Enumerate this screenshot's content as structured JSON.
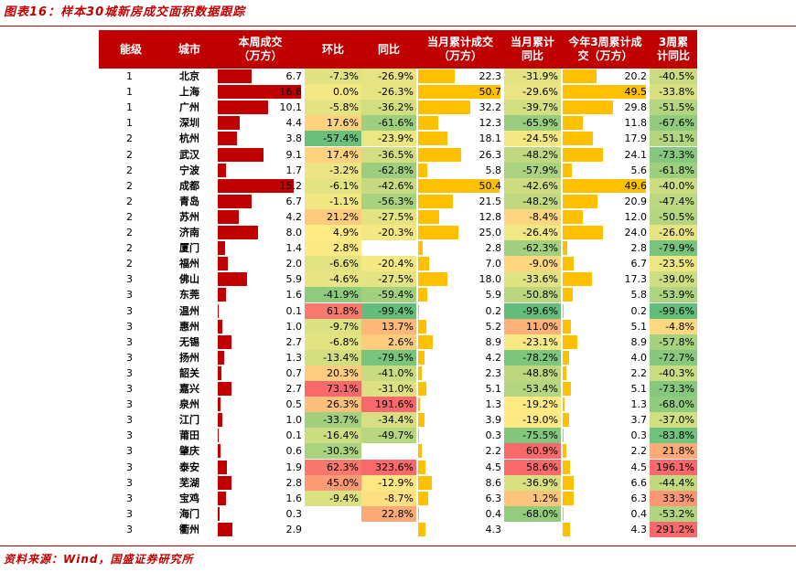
{
  "title": "图表16：样本30城新房成交面积数据跟踪",
  "source": "资料来源：Wind，国盛证券研究所",
  "colors": {
    "brand": "#c00000",
    "bar_week": "#c00000",
    "bar_cum": "#ffc000",
    "heat_low": "#63be7b",
    "heat_mid": "#ffeb84",
    "heat_high": "#f8696b"
  },
  "headers": {
    "tier": "能级",
    "city": "城市",
    "week": "本周成交\n（万方）",
    "mom": "环比",
    "yoy": "同比",
    "month": "当月累计成交\n（万方）",
    "month_yoy": "当月累计\n同比",
    "three": "今年3周累计成\n交（万方）",
    "three_yoy": "3周累\n计同比"
  },
  "rows": [
    {
      "tier": "1",
      "city": "北京",
      "week": "6.7",
      "mom": "-7.3%",
      "yoy": "-26.9%",
      "month": "22.3",
      "month_yoy": "-31.9%",
      "three": "20.2",
      "three_yoy": "-40.5%"
    },
    {
      "tier": "1",
      "city": "上海",
      "week": "16.6",
      "mom": "0.0%",
      "yoy": "-26.3%",
      "month": "50.7",
      "month_yoy": "-29.6%",
      "three": "49.5",
      "three_yoy": "-33.8%"
    },
    {
      "tier": "1",
      "city": "广州",
      "week": "10.1",
      "mom": "-5.8%",
      "yoy": "-36.2%",
      "month": "32.2",
      "month_yoy": "-39.7%",
      "three": "29.8",
      "three_yoy": "-51.5%"
    },
    {
      "tier": "1",
      "city": "深圳",
      "week": "4.4",
      "mom": "17.6%",
      "yoy": "-61.6%",
      "month": "12.3",
      "month_yoy": "-65.9%",
      "three": "11.8",
      "three_yoy": "-67.6%"
    },
    {
      "tier": "2",
      "city": "杭州",
      "week": "3.8",
      "mom": "-57.4%",
      "yoy": "-23.9%",
      "month": "18.1",
      "month_yoy": "-24.5%",
      "three": "17.9",
      "three_yoy": "-51.1%"
    },
    {
      "tier": "2",
      "city": "武汉",
      "week": "9.1",
      "mom": "17.4%",
      "yoy": "-36.5%",
      "month": "26.3",
      "month_yoy": "-48.2%",
      "three": "24.1",
      "three_yoy": "-73.3%"
    },
    {
      "tier": "2",
      "city": "宁波",
      "week": "1.7",
      "mom": "-3.2%",
      "yoy": "-62.8%",
      "month": "5.8",
      "month_yoy": "-57.9%",
      "three": "5.6",
      "three_yoy": "-61.8%"
    },
    {
      "tier": "2",
      "city": "成都",
      "week": "15.2",
      "mom": "-6.1%",
      "yoy": "-42.6%",
      "month": "50.4",
      "month_yoy": "-42.6%",
      "three": "49.6",
      "three_yoy": "-40.0%"
    },
    {
      "tier": "2",
      "city": "青岛",
      "week": "6.7",
      "mom": "-1.1%",
      "yoy": "-56.3%",
      "month": "21.5",
      "month_yoy": "-48.2%",
      "three": "20.9",
      "three_yoy": "-47.4%"
    },
    {
      "tier": "2",
      "city": "苏州",
      "week": "4.2",
      "mom": "21.2%",
      "yoy": "-27.5%",
      "month": "12.8",
      "month_yoy": "-8.4%",
      "three": "12.0",
      "three_yoy": "-50.5%"
    },
    {
      "tier": "2",
      "city": "济南",
      "week": "8.0",
      "mom": "4.9%",
      "yoy": "-20.3%",
      "month": "25.0",
      "month_yoy": "-26.4%",
      "three": "24.0",
      "three_yoy": "-26.0%"
    },
    {
      "tier": "2",
      "city": "厦门",
      "week": "1.4",
      "mom": "2.8%",
      "yoy": "",
      "month": "2.8",
      "month_yoy": "-62.3%",
      "three": "2.8",
      "three_yoy": "-79.9%"
    },
    {
      "tier": "2",
      "city": "福州",
      "week": "2.0",
      "mom": "-6.6%",
      "yoy": "-20.4%",
      "month": "7.0",
      "month_yoy": "-9.0%",
      "three": "6.7",
      "three_yoy": "-23.5%"
    },
    {
      "tier": "3",
      "city": "佛山",
      "week": "5.9",
      "mom": "-4.6%",
      "yoy": "-27.5%",
      "month": "18.0",
      "month_yoy": "-33.6%",
      "three": "17.3",
      "three_yoy": "-39.0%"
    },
    {
      "tier": "3",
      "city": "东莞",
      "week": "1.6",
      "mom": "-41.9%",
      "yoy": "-59.4%",
      "month": "5.9",
      "month_yoy": "-50.8%",
      "three": "5.8",
      "three_yoy": "-53.9%"
    },
    {
      "tier": "3",
      "city": "温州",
      "week": "0.1",
      "mom": "61.8%",
      "yoy": "-99.4%",
      "month": "0.2",
      "month_yoy": "-99.6%",
      "three": "0.2",
      "three_yoy": "-99.6%"
    },
    {
      "tier": "3",
      "city": "惠州",
      "week": "1.0",
      "mom": "-9.7%",
      "yoy": "13.7%",
      "month": "5.2",
      "month_yoy": "11.0%",
      "three": "5.1",
      "three_yoy": "-4.8%"
    },
    {
      "tier": "3",
      "city": "无锡",
      "week": "2.7",
      "mom": "-6.8%",
      "yoy": "2.6%",
      "month": "8.9",
      "month_yoy": "-23.1%",
      "three": "8.9",
      "three_yoy": "-57.8%"
    },
    {
      "tier": "3",
      "city": "扬州",
      "week": "1.3",
      "mom": "-13.4%",
      "yoy": "-79.5%",
      "month": "4.2",
      "month_yoy": "-78.2%",
      "three": "4.0",
      "three_yoy": "-72.7%"
    },
    {
      "tier": "3",
      "city": "韶关",
      "week": "0.7",
      "mom": "20.3%",
      "yoy": "-41.0%",
      "month": "2.3",
      "month_yoy": "-48.8%",
      "three": "2.2",
      "three_yoy": "-40.3%"
    },
    {
      "tier": "3",
      "city": "嘉兴",
      "week": "2.7",
      "mom": "73.1%",
      "yoy": "-31.0%",
      "month": "5.1",
      "month_yoy": "-53.4%",
      "three": "5.1",
      "three_yoy": "-73.3%"
    },
    {
      "tier": "3",
      "city": "泉州",
      "week": "0.5",
      "mom": "26.3%",
      "yoy": "191.6%",
      "month": "1.3",
      "month_yoy": "-19.2%",
      "three": "1.3",
      "three_yoy": "-68.0%"
    },
    {
      "tier": "3",
      "city": "江门",
      "week": "1.0",
      "mom": "-33.7%",
      "yoy": "-34.4%",
      "month": "3.9",
      "month_yoy": "-19.0%",
      "three": "3.7",
      "three_yoy": "-37.0%"
    },
    {
      "tier": "3",
      "city": "莆田",
      "week": "0.1",
      "mom": "-16.4%",
      "yoy": "-49.7%",
      "month": "0.3",
      "month_yoy": "-75.5%",
      "three": "0.3",
      "three_yoy": "-83.8%"
    },
    {
      "tier": "3",
      "city": "肇庆",
      "week": "0.6",
      "mom": "-30.3%",
      "yoy": "",
      "month": "2.2",
      "month_yoy": "60.9%",
      "three": "2.2",
      "three_yoy": "21.8%"
    },
    {
      "tier": "3",
      "city": "泰安",
      "week": "1.9",
      "mom": "62.3%",
      "yoy": "323.6%",
      "month": "4.5",
      "month_yoy": "58.6%",
      "three": "4.5",
      "three_yoy": "196.1%"
    },
    {
      "tier": "3",
      "city": "芜湖",
      "week": "2.8",
      "mom": "45.0%",
      "yoy": "-12.9%",
      "month": "8.6",
      "month_yoy": "-36.9%",
      "three": "6.6",
      "three_yoy": "-44.4%"
    },
    {
      "tier": "3",
      "city": "宝鸡",
      "week": "1.6",
      "mom": "-9.4%",
      "yoy": "-8.7%",
      "month": "6.3",
      "month_yoy": "1.2%",
      "three": "6.3",
      "three_yoy": "33.3%"
    },
    {
      "tier": "3",
      "city": "海门",
      "week": "0.3",
      "mom": "",
      "yoy": "22.8%",
      "month": "0.4",
      "month_yoy": "-68.0%",
      "three": "0.4",
      "three_yoy": "-53.2%"
    },
    {
      "tier": "3",
      "city": "衢州",
      "week": "2.9",
      "mom": "",
      "yoy": "",
      "month": "4.3",
      "month_yoy": "",
      "three": "4.3",
      "three_yoy": "291.2%"
    }
  ]
}
